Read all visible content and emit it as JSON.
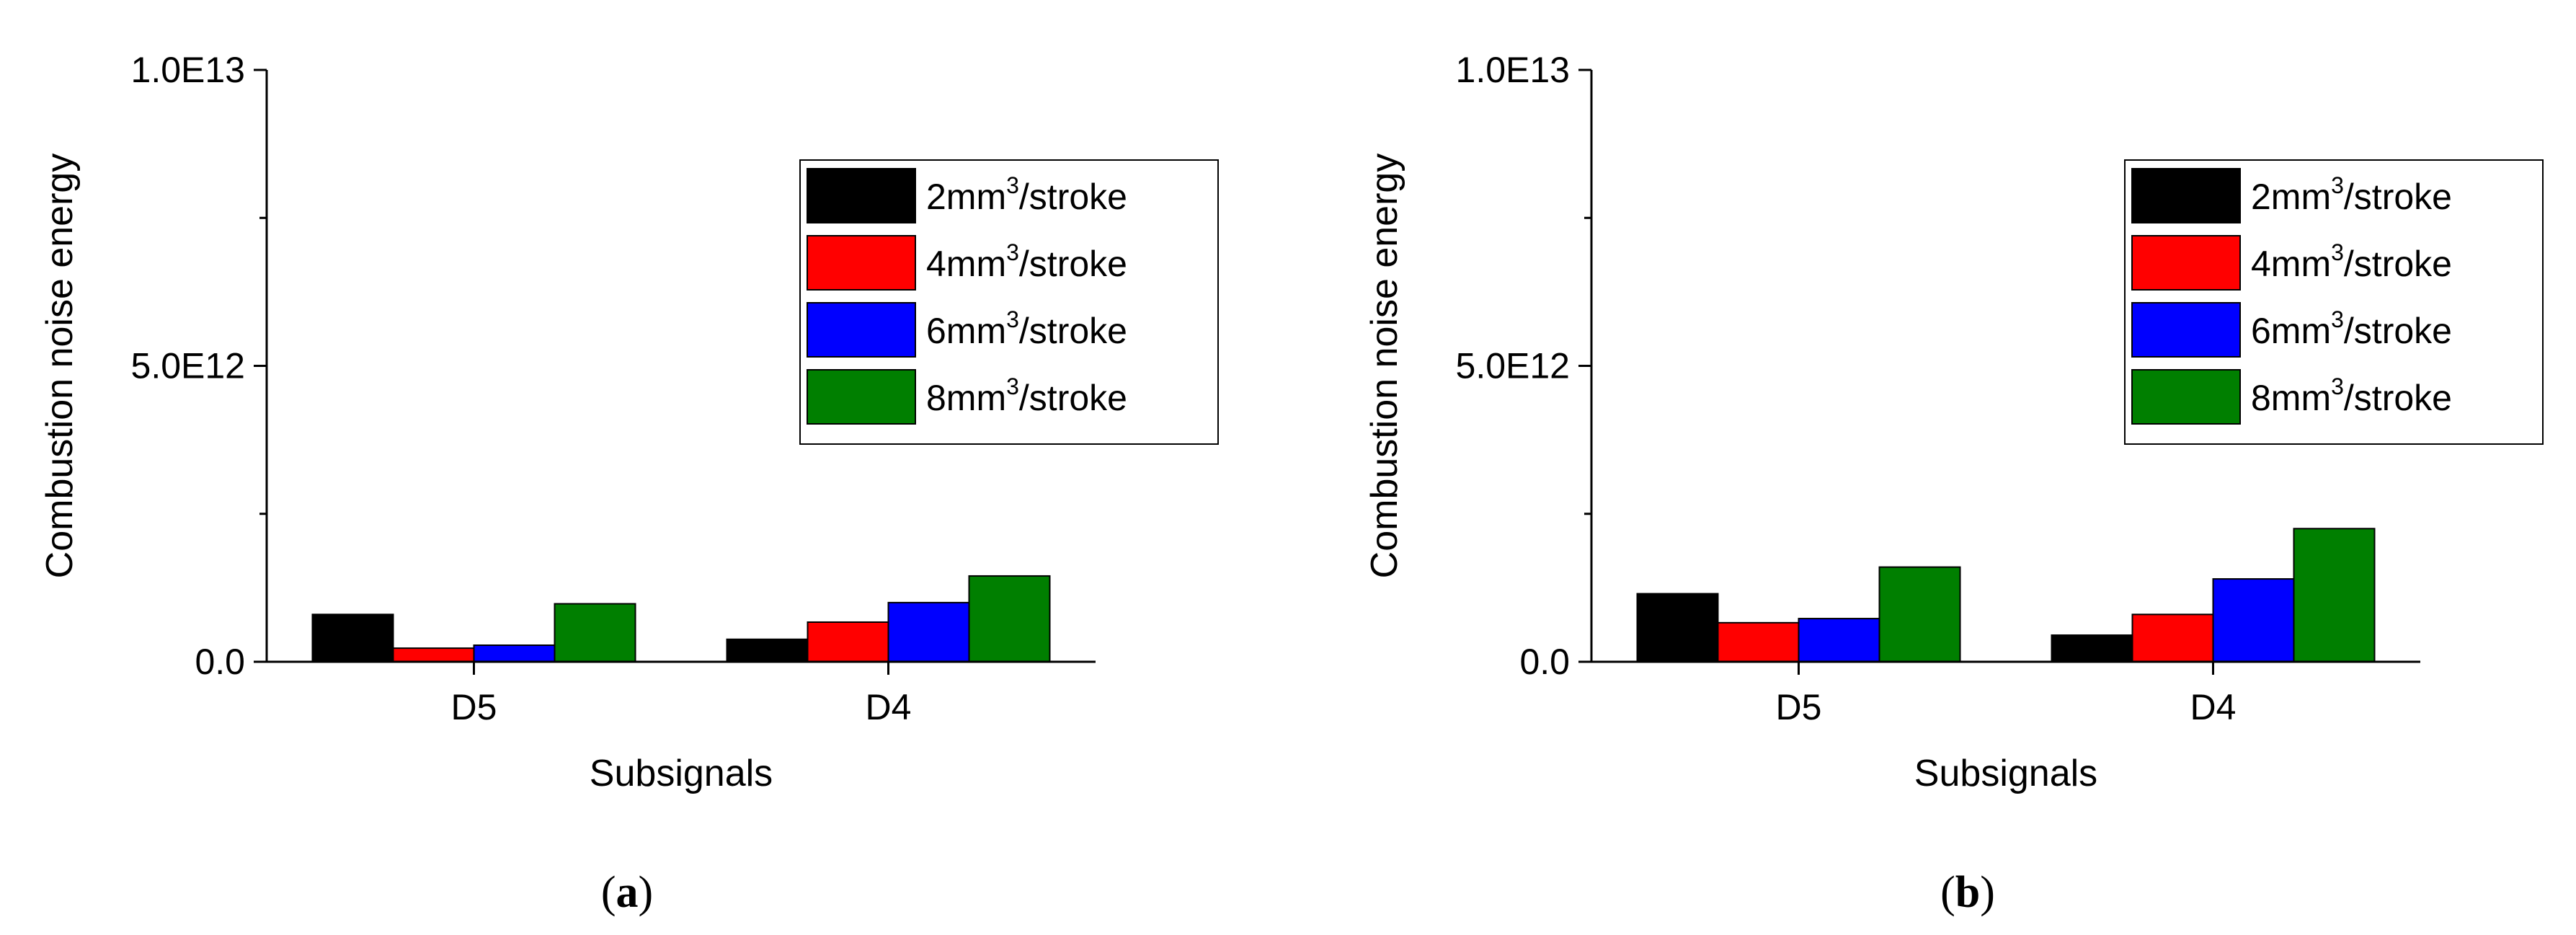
{
  "colors": {
    "series": [
      "#000000",
      "#ff0000",
      "#0000ff",
      "#007f00"
    ],
    "axis": "#000000",
    "background": "#ffffff"
  },
  "chart_data": [
    {
      "type": "bar",
      "panel_label": "a",
      "categories": [
        "D5",
        "D4"
      ],
      "xlabel": "Subsignals",
      "ylabel": "Combustion noise energy",
      "ylim": [
        0,
        10000000000000.0
      ],
      "yticks": [
        0,
        5000000000000.0,
        10000000000000.0
      ],
      "ytick_labels": [
        "0.0",
        "5.0E12",
        "1.0E13"
      ],
      "grid": false,
      "legend_position": "top-right",
      "series": [
        {
          "name": "2mm3/stroke",
          "values": [
            800000000000.0,
            380000000000.0
          ]
        },
        {
          "name": "4mm3/stroke",
          "values": [
            230000000000.0,
            670000000000.0
          ]
        },
        {
          "name": "6mm3/stroke",
          "values": [
            280000000000.0,
            1000000000000.0
          ]
        },
        {
          "name": "8mm3/stroke",
          "values": [
            980000000000.0,
            1450000000000.0
          ]
        }
      ]
    },
    {
      "type": "bar",
      "panel_label": "b",
      "categories": [
        "D5",
        "D4"
      ],
      "xlabel": "Subsignals",
      "ylabel": "Combustion noise energy",
      "ylim": [
        0,
        10000000000000.0
      ],
      "yticks": [
        0,
        5000000000000.0,
        10000000000000.0
      ],
      "ytick_labels": [
        "0.0",
        "5.0E12",
        "1.0E13"
      ],
      "grid": false,
      "legend_position": "top-right",
      "series": [
        {
          "name": "2mm3/stroke",
          "values": [
            1150000000000.0,
            450000000000.0
          ]
        },
        {
          "name": "4mm3/stroke",
          "values": [
            660000000000.0,
            800000000000.0
          ]
        },
        {
          "name": "6mm3/stroke",
          "values": [
            730000000000.0,
            1400000000000.0
          ]
        },
        {
          "name": "8mm3/stroke",
          "values": [
            1600000000000.0,
            2250000000000.0
          ]
        }
      ]
    }
  ]
}
